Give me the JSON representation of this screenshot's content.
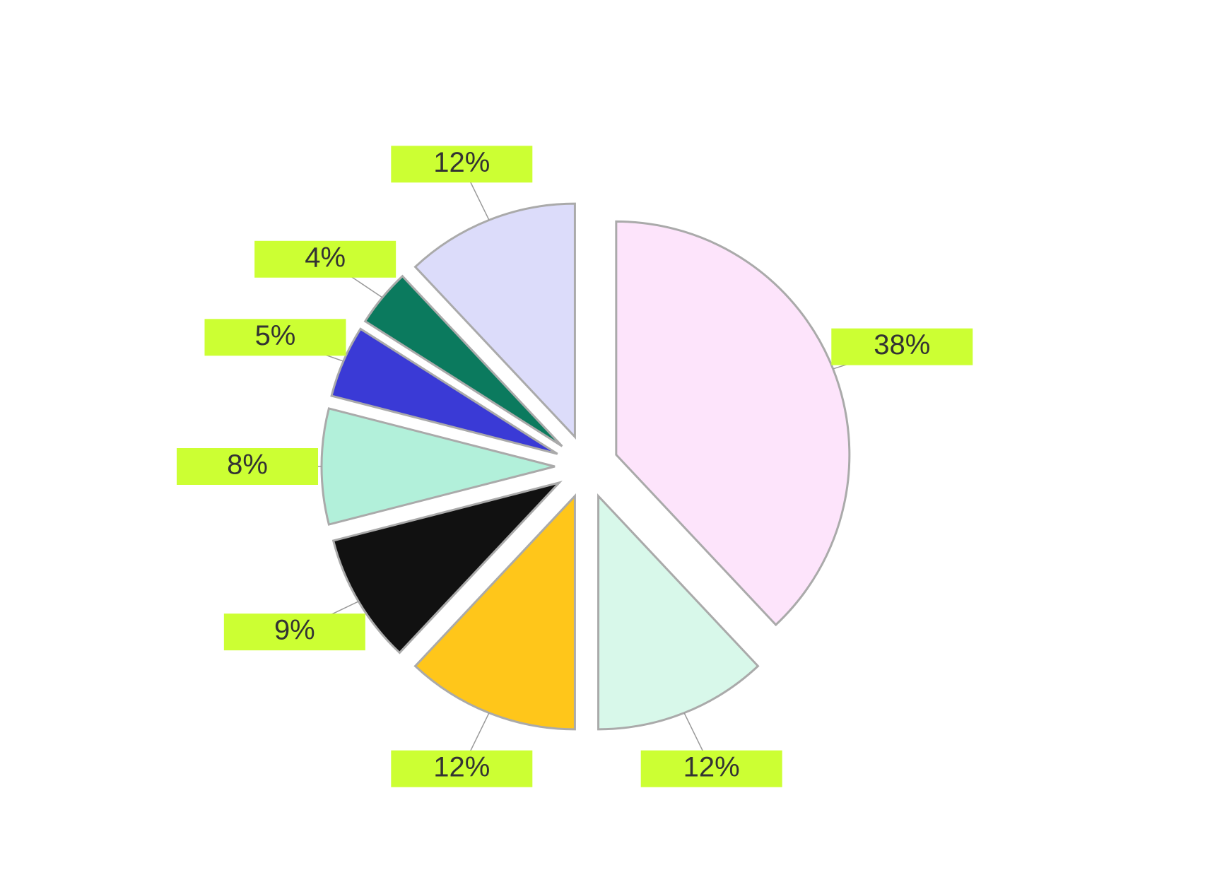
{
  "chart_data": {
    "type": "pie",
    "values": [
      38,
      12,
      12,
      9,
      8,
      5,
      4,
      12
    ],
    "value_labels": [
      "38%",
      "12%",
      "12%",
      "9%",
      "8%",
      "5%",
      "4%",
      "12%"
    ],
    "colors": [
      "#fde4fb",
      "#d8f8ea",
      "#ffc61a",
      "#111111",
      "#b2f0da",
      "#3a3ad6",
      "#0b7a5e",
      "#dcdcfa"
    ],
    "label_background": "#ccff33"
  }
}
